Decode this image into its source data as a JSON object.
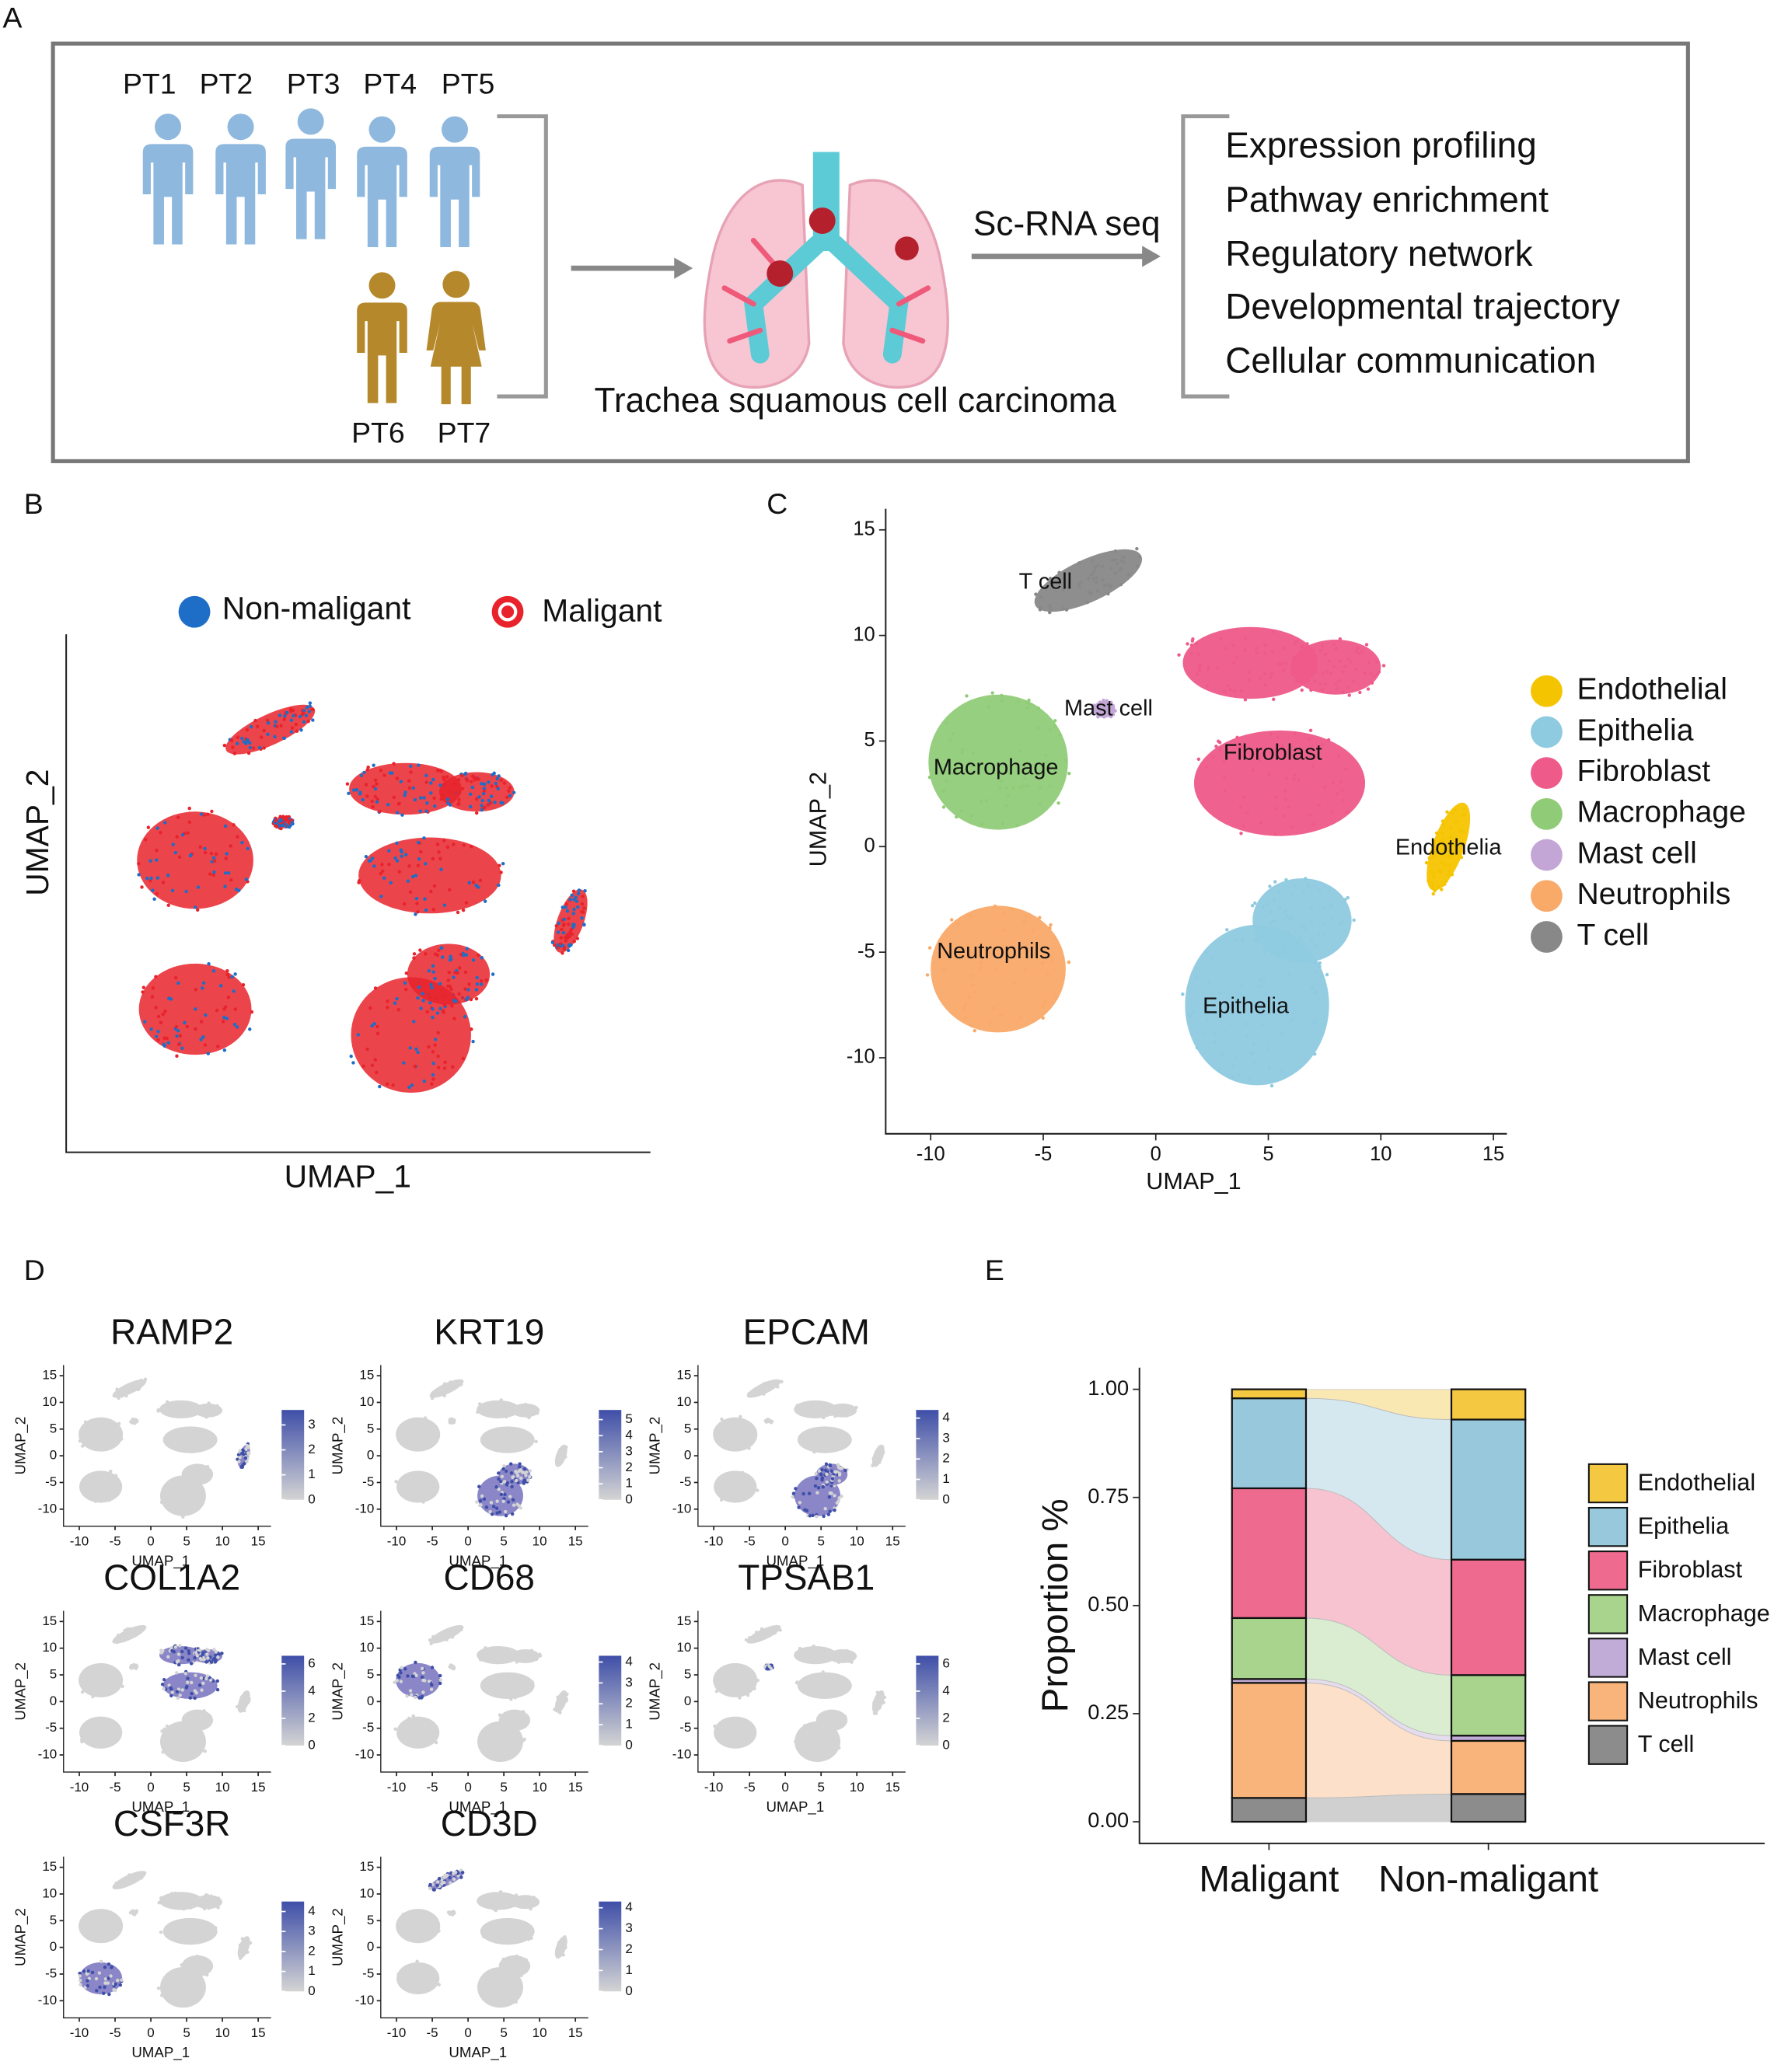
{
  "panel_a": {
    "label": "A",
    "patients": [
      "PT1",
      "PT2",
      "PT3",
      "PT4",
      "PT5",
      "PT6",
      "PT7"
    ],
    "sample": "Trachea squamous cell carcinoma",
    "method": "Sc-RNA seq",
    "analyses": [
      "Expression profiling",
      "Pathway enrichment",
      "Regulatory network",
      "Developmental trajectory",
      "Cellular communication"
    ]
  },
  "chart_data": [
    {
      "type": "scatter",
      "panel": "B",
      "xlabel": "UMAP_1",
      "ylabel": "UMAP_2",
      "legend": [
        {
          "name": "Non-maligant",
          "color": "#1e6ec8"
        },
        {
          "name": "Maligant",
          "color": "#e8232b"
        }
      ]
    },
    {
      "type": "scatter",
      "panel": "C",
      "xlabel": "UMAP_1",
      "ylabel": "UMAP_2",
      "xlim": [
        -12,
        15.6
      ],
      "ylim": [
        -13.6,
        16
      ],
      "xticks": [
        -10,
        -5,
        0,
        5,
        10,
        15
      ],
      "yticks": [
        -10,
        -5,
        0,
        5,
        10,
        15
      ],
      "legend": [
        {
          "name": "Endothelial",
          "color": "#f5c400"
        },
        {
          "name": "Epithelia",
          "color": "#8ecae0"
        },
        {
          "name": "Fibroblast",
          "color": "#ee5a8a"
        },
        {
          "name": "Macrophage",
          "color": "#90cc78"
        },
        {
          "name": "Mast cell",
          "color": "#c3a6d6"
        },
        {
          "name": "Neutrophils",
          "color": "#f9a968"
        },
        {
          "name": "T cell",
          "color": "#888888"
        }
      ],
      "annotations": [
        {
          "text": "T cell",
          "x": -4.9,
          "y": 12.5
        },
        {
          "text": "Mast cell",
          "x": -2.1,
          "y": 6.5
        },
        {
          "text": "Macrophage",
          "x": -7.1,
          "y": 3.7
        },
        {
          "text": "Fibroblast",
          "x": 5.2,
          "y": 4.4
        },
        {
          "text": "Endothelia",
          "x": 13,
          "y": -0.1
        },
        {
          "text": "Neutrophils",
          "x": -7.2,
          "y": -5
        },
        {
          "text": "Epithelia",
          "x": 4,
          "y": -7.6
        }
      ]
    },
    {
      "type": "feature",
      "panel": "D",
      "xlabel": "UMAP_1",
      "ylabel": "UMAP_2",
      "xlim": [
        -12.2,
        16.8
      ],
      "ylim": [
        -13.2,
        17
      ],
      "xticks": [
        -10,
        -5,
        0,
        5,
        10,
        15
      ],
      "yticks": [
        -10,
        -5,
        0,
        5,
        10,
        15
      ],
      "low_color": "#d4d4d4",
      "high_color": "#3f4fa8",
      "plots": [
        {
          "title": "RAMP2",
          "clim": [
            0,
            3.6
          ],
          "cticks": [
            0,
            1,
            2,
            3
          ]
        },
        {
          "title": "KRT19",
          "clim": [
            0,
            5.6
          ],
          "cticks": [
            0,
            1,
            2,
            3,
            4,
            5
          ]
        },
        {
          "title": "EPCAM",
          "clim": [
            0,
            4.4
          ],
          "cticks": [
            0,
            1,
            2,
            3,
            4
          ]
        },
        {
          "title": "COL1A2",
          "clim": [
            0,
            6.6
          ],
          "cticks": [
            0,
            2,
            4,
            6
          ]
        },
        {
          "title": "CD68",
          "clim": [
            0,
            4.3
          ],
          "cticks": [
            0,
            1,
            2,
            3,
            4
          ]
        },
        {
          "title": "TPSAB1",
          "clim": [
            0,
            6.6
          ],
          "cticks": [
            0,
            2,
            4,
            6
          ]
        },
        {
          "title": "CSF3R",
          "clim": [
            0,
            4.5
          ],
          "cticks": [
            0,
            1,
            2,
            3,
            4
          ]
        },
        {
          "title": "CD3D",
          "clim": [
            0,
            4.3
          ],
          "cticks": [
            0,
            1,
            2,
            3,
            4
          ]
        }
      ]
    },
    {
      "type": "bar",
      "stacked": true,
      "panel": "E",
      "ylabel": "Proportion %",
      "categories": [
        "Maligant",
        "Non-maligant"
      ],
      "ylim": [
        -0.05,
        1.05
      ],
      "yticks": [
        {
          "value": 0,
          "label": "0.00"
        },
        0.25,
        {
          "value": 0.5,
          "label": "0.50"
        },
        0.75,
        {
          "value": 1,
          "label": "1.00"
        }
      ],
      "series": [
        {
          "name": "Endothelial",
          "color": "#f5c842",
          "values": [
            0.021,
            0.07
          ]
        },
        {
          "name": "Epithelia",
          "color": "#98c8dc",
          "values": [
            0.208,
            0.324
          ]
        },
        {
          "name": "Fibroblast",
          "color": "#ee6a8e",
          "values": [
            0.3,
            0.267
          ]
        },
        {
          "name": "Macrophage",
          "color": "#a8d48e",
          "values": [
            0.141,
            0.14
          ]
        },
        {
          "name": "Mast cell",
          "color": "#c0acd6",
          "values": [
            0.009,
            0.012
          ]
        },
        {
          "name": "Neutrophils",
          "color": "#f8b47a",
          "values": [
            0.266,
            0.123
          ]
        },
        {
          "name": "T cell",
          "color": "#8c8c8c",
          "values": [
            0.055,
            0.064
          ]
        }
      ]
    }
  ]
}
